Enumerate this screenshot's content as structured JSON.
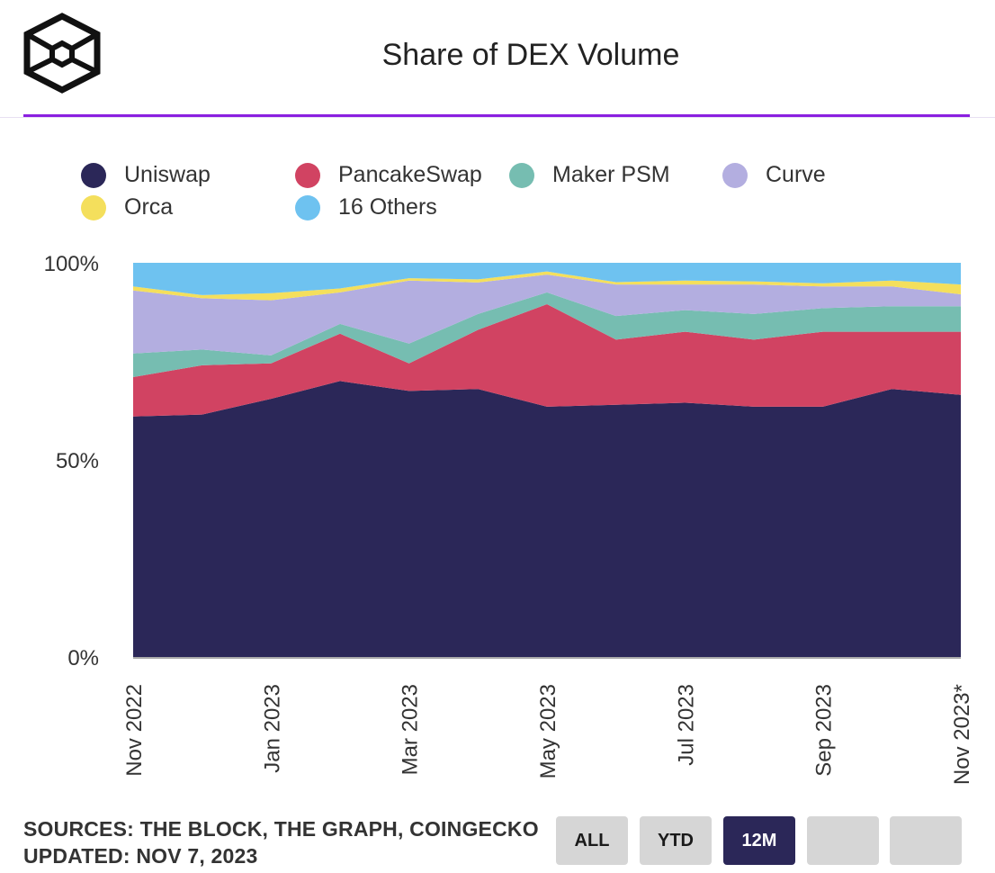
{
  "header": {
    "title": "Share of DEX Volume"
  },
  "footer": {
    "sources": "SOURCES: THE BLOCK, THE GRAPH, COINGECKO",
    "updated": "UPDATED: NOV 7, 2023"
  },
  "range_buttons": [
    {
      "label": "ALL",
      "active": false
    },
    {
      "label": "YTD",
      "active": false
    },
    {
      "label": "12M",
      "active": true
    },
    {
      "label": "",
      "active": false
    },
    {
      "label": "",
      "active": false
    }
  ],
  "chart_data": {
    "type": "area",
    "stacked": true,
    "normalized": true,
    "title": "Share of DEX Volume",
    "xlabel": "",
    "ylabel": "",
    "ylim": [
      0,
      100
    ],
    "y_ticks": [
      "0%",
      "50%",
      "100%"
    ],
    "x": [
      "Nov 2022",
      "Dec 2022",
      "Jan 2023",
      "Feb 2023",
      "Mar 2023",
      "Apr 2023",
      "May 2023",
      "Jun 2023",
      "Jul 2023",
      "Aug 2023",
      "Sep 2023",
      "Oct 2023",
      "Nov 2023*"
    ],
    "x_tick_labels": [
      "Nov 2022",
      "Jan 2023",
      "Mar 2023",
      "May 2023",
      "Jul 2023",
      "Sep 2023",
      "Nov 2023*"
    ],
    "legend_position": "top",
    "grid": false,
    "series": [
      {
        "name": "Uniswap",
        "color": "#2b2758",
        "values": [
          61,
          61.5,
          65.5,
          70,
          67.5,
          68,
          63.5,
          64,
          64.5,
          63.5,
          63.5,
          68,
          66.5
        ]
      },
      {
        "name": "PancakeSwap",
        "color": "#d14362",
        "values": [
          10,
          12.5,
          9,
          12,
          7,
          15,
          26,
          16.5,
          18,
          17,
          19,
          14.5,
          16
        ]
      },
      {
        "name": "Maker PSM",
        "color": "#76bdb1",
        "values": [
          6,
          4,
          2,
          2.5,
          5,
          4,
          3,
          6,
          5.5,
          6.5,
          6,
          6.5,
          6.5
        ]
      },
      {
        "name": "Curve",
        "color": "#b3aee0",
        "values": [
          16,
          13,
          14,
          8,
          16,
          8,
          4.5,
          8,
          6.5,
          7.5,
          5.5,
          5,
          3
        ]
      },
      {
        "name": "Orca",
        "color": "#f4df5c",
        "values": [
          1,
          0.8,
          1.8,
          1,
          0.6,
          0.8,
          0.8,
          0.6,
          1,
          0.8,
          0.8,
          1.5,
          2.5
        ]
      },
      {
        "name": "16 Others",
        "color": "#6ec2f0",
        "values": [
          6,
          8.2,
          7.7,
          6.5,
          3.9,
          4.2,
          2.2,
          4.9,
          4.5,
          4.7,
          5.2,
          4.5,
          5.5
        ]
      }
    ]
  }
}
